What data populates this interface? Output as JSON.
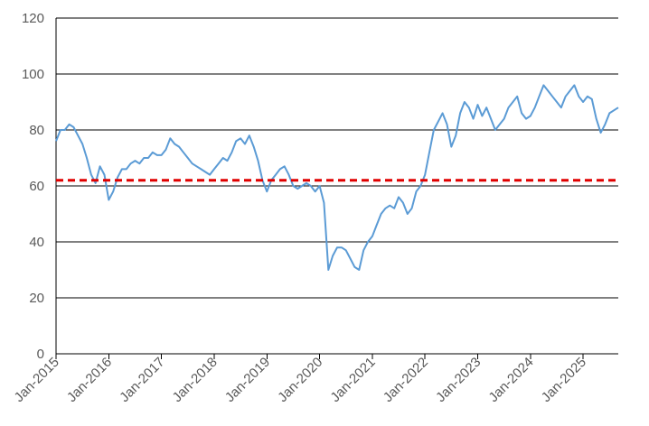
{
  "chart_data": {
    "type": "line",
    "title": "",
    "xlabel": "",
    "ylabel": "",
    "ylim": [
      0,
      120
    ],
    "yticks": [
      0,
      20,
      40,
      60,
      80,
      100,
      120
    ],
    "grid": "horizontal",
    "legend": "none",
    "x_range": [
      "2015-01",
      "2025-09"
    ],
    "x_tick_labels": [
      "Jan-2015",
      "Jan-2016",
      "Jan-2017",
      "Jan-2018",
      "Jan-2019",
      "Jan-2020",
      "Jan-2021",
      "Jan-2022",
      "Jan-2023",
      "Jan-2024",
      "Jan-2025"
    ],
    "series": [
      {
        "color": "#5b9bd5",
        "x": [
          "2015-01",
          "2015-02",
          "2015-03",
          "2015-04",
          "2015-05",
          "2015-06",
          "2015-07",
          "2015-08",
          "2015-09",
          "2015-10",
          "2015-11",
          "2015-12",
          "2016-01",
          "2016-02",
          "2016-03",
          "2016-04",
          "2016-05",
          "2016-06",
          "2016-07",
          "2016-08",
          "2016-09",
          "2016-10",
          "2016-11",
          "2016-12",
          "2017-01",
          "2017-02",
          "2017-03",
          "2017-04",
          "2017-05",
          "2017-06",
          "2017-07",
          "2017-08",
          "2017-09",
          "2017-10",
          "2017-11",
          "2017-12",
          "2018-01",
          "2018-02",
          "2018-03",
          "2018-04",
          "2018-05",
          "2018-06",
          "2018-07",
          "2018-08",
          "2018-09",
          "2018-10",
          "2018-11",
          "2018-12",
          "2019-01",
          "2019-02",
          "2019-03",
          "2019-04",
          "2019-05",
          "2019-06",
          "2019-07",
          "2019-08",
          "2019-09",
          "2019-10",
          "2019-11",
          "2019-12",
          "2020-01",
          "2020-02",
          "2020-03",
          "2020-04",
          "2020-05",
          "2020-06",
          "2020-07",
          "2020-08",
          "2020-09",
          "2020-10",
          "2020-11",
          "2020-12",
          "2021-01",
          "2021-02",
          "2021-03",
          "2021-04",
          "2021-05",
          "2021-06",
          "2021-07",
          "2021-08",
          "2021-09",
          "2021-10",
          "2021-11",
          "2021-12",
          "2022-01",
          "2022-02",
          "2022-03",
          "2022-04",
          "2022-05",
          "2022-06",
          "2022-07",
          "2022-08",
          "2022-09",
          "2022-10",
          "2022-11",
          "2022-12",
          "2023-01",
          "2023-02",
          "2023-03",
          "2023-04",
          "2023-05",
          "2023-06",
          "2023-07",
          "2023-08",
          "2023-09",
          "2023-10",
          "2023-11",
          "2023-12",
          "2024-01",
          "2024-02",
          "2024-03",
          "2024-04",
          "2024-05",
          "2024-06",
          "2024-07",
          "2024-08",
          "2024-09",
          "2024-10",
          "2024-11",
          "2024-12",
          "2025-01",
          "2025-02",
          "2025-03",
          "2025-04",
          "2025-05",
          "2025-06",
          "2025-07",
          "2025-08",
          "2025-09"
        ],
        "values": [
          76,
          80,
          80,
          82,
          81,
          78,
          75,
          70,
          64,
          61,
          67,
          64,
          55,
          58,
          63,
          66,
          66,
          68,
          69,
          68,
          70,
          70,
          72,
          71,
          71,
          73,
          77,
          75,
          74,
          72,
          70,
          68,
          67,
          66,
          65,
          64,
          66,
          68,
          70,
          69,
          72,
          76,
          77,
          75,
          78,
          74,
          69,
          62,
          58,
          62,
          64,
          66,
          67,
          64,
          60,
          59,
          60,
          61,
          60,
          58,
          60,
          54,
          30,
          35,
          38,
          38,
          37,
          34,
          31,
          30,
          37,
          40,
          42,
          46,
          50,
          52,
          53,
          52,
          56,
          54,
          50,
          52,
          58,
          60,
          64,
          72,
          80,
          83,
          86,
          82,
          74,
          78,
          86,
          90,
          88,
          84,
          89,
          85,
          88,
          84,
          80,
          82,
          84,
          88,
          90,
          92,
          86,
          84,
          85,
          88,
          92,
          96,
          94,
          92,
          90,
          88,
          92,
          94,
          96,
          92,
          90,
          92,
          91,
          84,
          79,
          82,
          86,
          87,
          88
        ]
      },
      {
        "color": "#e00000",
        "style": "dashed",
        "values": [
          62
        ]
      }
    ]
  }
}
